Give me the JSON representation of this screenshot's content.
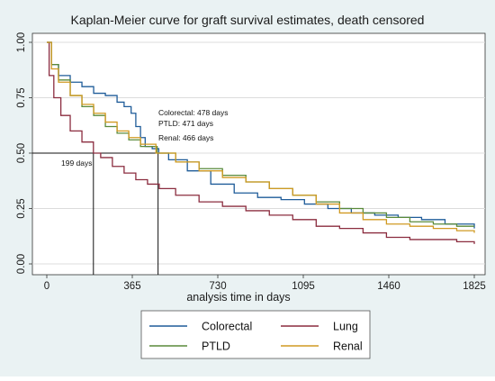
{
  "chart_data": {
    "type": "line",
    "title": "Kaplan-Meier curve for graft survival estimates, death censored",
    "xlabel": "analysis time in days",
    "ylabel": "",
    "xlim": [
      0,
      1825
    ],
    "ylim": [
      0,
      1
    ],
    "x_ticks": [
      "0",
      "365",
      "730",
      "1095",
      "1460",
      "1825"
    ],
    "y_ticks": [
      "0.00",
      "0.25",
      "0.50",
      "0.75",
      "1.00"
    ],
    "grid": true,
    "legend_position": "bottom",
    "series": [
      {
        "name": "Colorectal",
        "color": "#1f5c99",
        "points": [
          [
            0,
            1
          ],
          [
            20,
            0.9
          ],
          [
            50,
            0.85
          ],
          [
            100,
            0.82
          ],
          [
            150,
            0.8
          ],
          [
            200,
            0.77
          ],
          [
            250,
            0.76
          ],
          [
            300,
            0.73
          ],
          [
            330,
            0.71
          ],
          [
            360,
            0.68
          ],
          [
            380,
            0.62
          ],
          [
            400,
            0.57
          ],
          [
            420,
            0.53
          ],
          [
            450,
            0.52
          ],
          [
            478,
            0.5
          ],
          [
            520,
            0.47
          ],
          [
            600,
            0.42
          ],
          [
            700,
            0.36
          ],
          [
            800,
            0.32
          ],
          [
            900,
            0.3
          ],
          [
            1000,
            0.29
          ],
          [
            1100,
            0.27
          ],
          [
            1200,
            0.25
          ],
          [
            1300,
            0.23
          ],
          [
            1400,
            0.22
          ],
          [
            1500,
            0.21
          ],
          [
            1600,
            0.2
          ],
          [
            1700,
            0.18
          ],
          [
            1825,
            0.16
          ]
        ]
      },
      {
        "name": "Lung",
        "color": "#8b2c3f",
        "points": [
          [
            0,
            1
          ],
          [
            10,
            0.85
          ],
          [
            30,
            0.75
          ],
          [
            60,
            0.67
          ],
          [
            100,
            0.6
          ],
          [
            150,
            0.55
          ],
          [
            199,
            0.5
          ],
          [
            230,
            0.48
          ],
          [
            280,
            0.44
          ],
          [
            330,
            0.41
          ],
          [
            380,
            0.38
          ],
          [
            430,
            0.36
          ],
          [
            480,
            0.34
          ],
          [
            550,
            0.31
          ],
          [
            650,
            0.28
          ],
          [
            750,
            0.26
          ],
          [
            850,
            0.24
          ],
          [
            950,
            0.22
          ],
          [
            1050,
            0.2
          ],
          [
            1150,
            0.17
          ],
          [
            1250,
            0.16
          ],
          [
            1350,
            0.14
          ],
          [
            1450,
            0.12
          ],
          [
            1550,
            0.11
          ],
          [
            1650,
            0.11
          ],
          [
            1750,
            0.1
          ],
          [
            1825,
            0.09
          ]
        ]
      },
      {
        "name": "PTLD",
        "color": "#5a8a3a",
        "points": [
          [
            0,
            1
          ],
          [
            20,
            0.9
          ],
          [
            50,
            0.83
          ],
          [
            100,
            0.76
          ],
          [
            150,
            0.71
          ],
          [
            200,
            0.67
          ],
          [
            250,
            0.62
          ],
          [
            300,
            0.59
          ],
          [
            350,
            0.56
          ],
          [
            400,
            0.53
          ],
          [
            471,
            0.5
          ],
          [
            550,
            0.46
          ],
          [
            650,
            0.43
          ],
          [
            750,
            0.4
          ],
          [
            850,
            0.37
          ],
          [
            950,
            0.34
          ],
          [
            1050,
            0.31
          ],
          [
            1150,
            0.28
          ],
          [
            1250,
            0.25
          ],
          [
            1350,
            0.23
          ],
          [
            1450,
            0.21
          ],
          [
            1550,
            0.19
          ],
          [
            1650,
            0.18
          ],
          [
            1750,
            0.17
          ],
          [
            1825,
            0.17
          ]
        ]
      },
      {
        "name": "Renal",
        "color": "#d19a22",
        "points": [
          [
            0,
            1
          ],
          [
            20,
            0.88
          ],
          [
            50,
            0.82
          ],
          [
            100,
            0.76
          ],
          [
            150,
            0.72
          ],
          [
            200,
            0.68
          ],
          [
            250,
            0.64
          ],
          [
            300,
            0.6
          ],
          [
            350,
            0.57
          ],
          [
            400,
            0.54
          ],
          [
            466,
            0.5
          ],
          [
            550,
            0.46
          ],
          [
            650,
            0.42
          ],
          [
            750,
            0.39
          ],
          [
            850,
            0.37
          ],
          [
            950,
            0.34
          ],
          [
            1050,
            0.31
          ],
          [
            1150,
            0.27
          ],
          [
            1250,
            0.23
          ],
          [
            1350,
            0.2
          ],
          [
            1450,
            0.18
          ],
          [
            1550,
            0.17
          ],
          [
            1650,
            0.16
          ],
          [
            1750,
            0.15
          ],
          [
            1825,
            0.14
          ]
        ]
      }
    ],
    "annotations": [
      {
        "text": "Colorectal: 478 days",
        "x": 478,
        "y": 0.5
      },
      {
        "text": "PTLD: 471 days",
        "x": 471,
        "y": 0.5
      },
      {
        "text": "Renal: 466 days",
        "x": 466,
        "y": 0.5
      },
      {
        "text": "199 days",
        "x": 199,
        "y": 0.5
      }
    ],
    "reference_lines": {
      "median_y": 0.5,
      "vertical_x": [
        199,
        475
      ]
    }
  }
}
